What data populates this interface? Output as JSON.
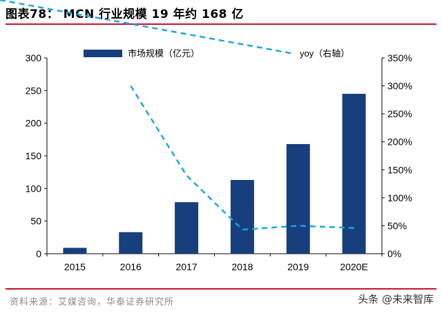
{
  "header": {
    "title": "图表78： MCN 行业规模 19 年约 168 亿"
  },
  "footer": {
    "source": "资料来源：艾媒咨询，华泰证券研究所",
    "watermark": "头条 @未来智库"
  },
  "colors": {
    "bar": "#173E7D",
    "line": "#1BA5E0",
    "rule": "#C8102E"
  },
  "chart_data": {
    "type": "bar",
    "categories": [
      "2015",
      "2016",
      "2017",
      "2018",
      "2019",
      "2020E"
    ],
    "series": [
      {
        "name": "市场规模（亿元）",
        "type": "bar",
        "axis": "left",
        "values": [
          9,
          33,
          79,
          113,
          168,
          245
        ]
      },
      {
        "name": "yoy（右轴）",
        "type": "line",
        "style": "dashed",
        "axis": "right",
        "values": [
          null,
          300,
          140,
          43,
          50,
          46
        ]
      }
    ],
    "y_left": {
      "min": 0,
      "max": 300,
      "ticks": [
        0,
        50,
        100,
        150,
        200,
        250,
        300
      ]
    },
    "y_right": {
      "min": 0,
      "max": 350,
      "ticks": [
        "0%",
        "50%",
        "100%",
        "150%",
        "200%",
        "250%",
        "300%",
        "350%"
      ]
    },
    "legend_position": "top",
    "grid": false
  }
}
